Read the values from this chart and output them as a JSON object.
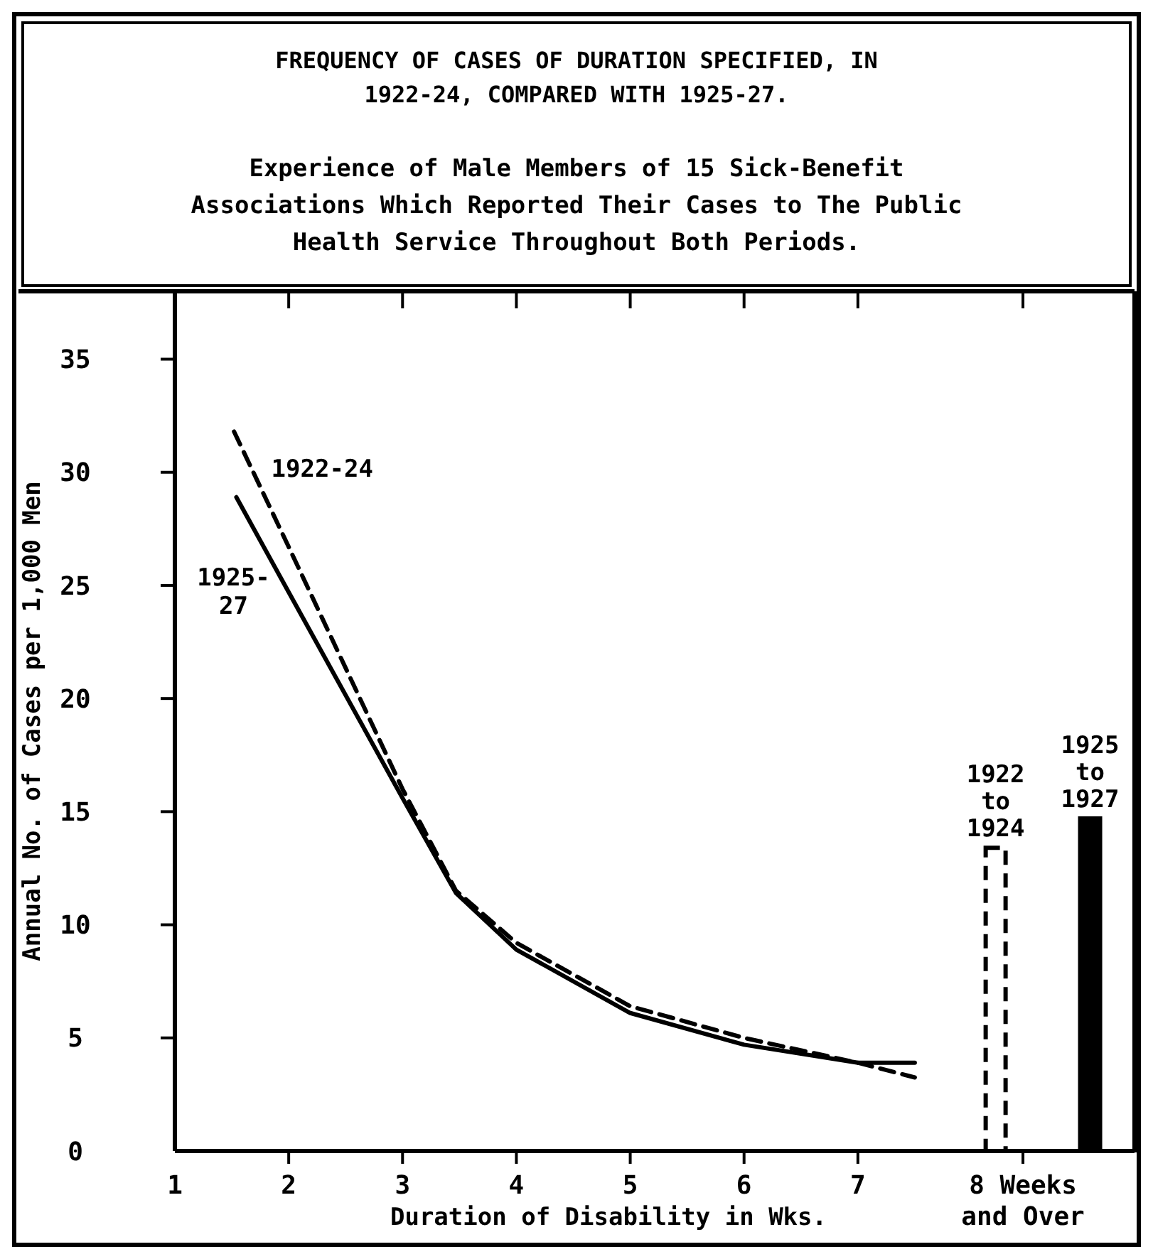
{
  "chart_data": {
    "type": "line",
    "title": "FREQUENCY OF CASES OF DURATION SPECIFIED, IN 1922-24, COMPARED WITH 1925-27.",
    "subtitle": "Experience of Male Members of 15 Sick-Benefit Associations Which Reported Their Cases to The Public Health Service Throughout Both Periods.",
    "xlabel": "Duration of Disability in Wks.",
    "ylabel": "Annual No. of Cases per 1,000 Men",
    "xlim": [
      1,
      9.43
    ],
    "xticks": [
      1,
      2,
      3,
      4,
      5,
      6,
      7,
      {
        "value": 8.45,
        "label": "8 Weeks and Over"
      }
    ],
    "ylim": [
      0,
      38
    ],
    "yticks": [
      0,
      5,
      10,
      15,
      20,
      25,
      30,
      35
    ],
    "grid": false,
    "legend": "top left",
    "series": [
      {
        "name": "1922-24",
        "line_style": "dashed",
        "color": "#000000",
        "x": [
          1.52,
          2,
          3,
          3.47,
          4,
          5,
          6,
          7,
          7.5
        ],
        "values": [
          31.8,
          26.7,
          16,
          11.5,
          9.2,
          6.4,
          5,
          3.9,
          3.25
        ]
      },
      {
        "name": "1925-27",
        "line_style": "solid",
        "color": "#000000",
        "x": [
          1.54,
          2,
          3,
          3.47,
          4,
          5,
          6,
          7,
          7.5
        ],
        "values": [
          28.9,
          24.7,
          15.6,
          11.4,
          8.9,
          6.1,
          4.7,
          3.9,
          3.9
        ]
      },
      {
        "name": "1922 to 1924",
        "type": "bar",
        "line_style": "dashed",
        "color": "#000000",
        "x": [
          8.21
        ],
        "values": [
          13.4
        ]
      },
      {
        "name": "1925 to 1927",
        "type": "bar",
        "line_style": "solid",
        "color": "#000000",
        "x": [
          9.04
        ],
        "values": [
          14.7
        ]
      }
    ]
  }
}
